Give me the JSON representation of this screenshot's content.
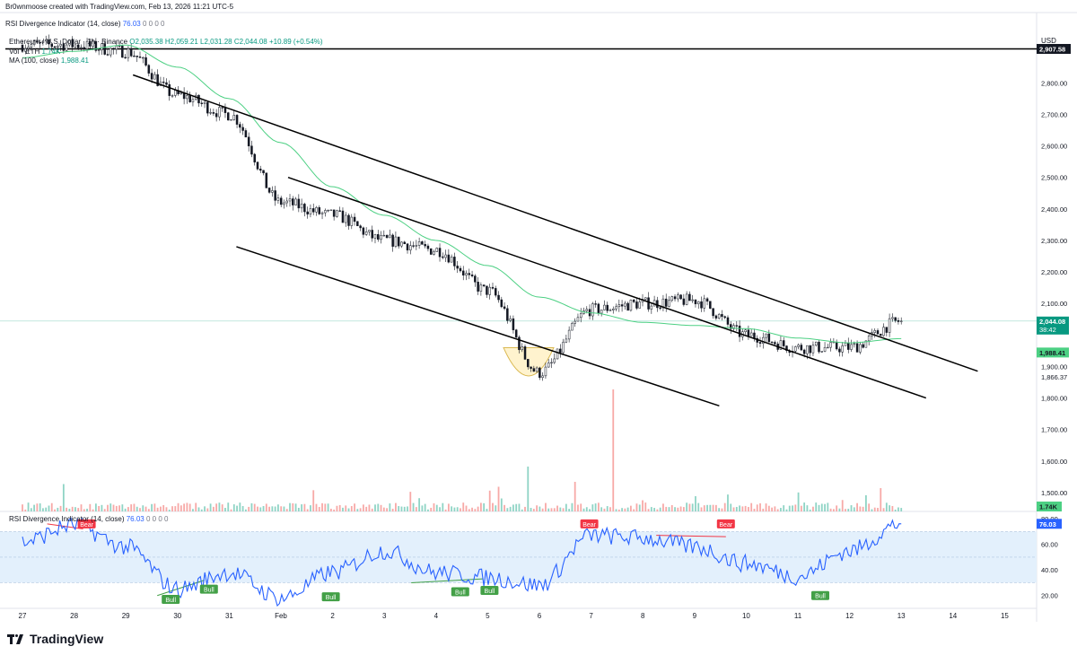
{
  "credit": "Br0wnmoose created with TradingView.com, Feb 13, 2026 11:21 UTC-5",
  "top_indicator": {
    "label": "RSI Divergence Indicator (14, close)",
    "value": "76.03",
    "zeros": "0 0 0 0"
  },
  "legend": {
    "symbol": "Ethereum / U.S. Dollar · 1h · Binance",
    "ohlc": "O2,035.38  H2,059.21  L2,031.28  C2,044.08  +10.89 (+0.54%)",
    "vol_label": "Vol · ETH",
    "vol_value": "1.74K",
    "ma_label": "MA (100, close)",
    "ma_value": "1,988.41"
  },
  "price_axis": {
    "currency": "USD",
    "ticks": [
      "2,800.00",
      "2,700.00",
      "2,600.00",
      "2,500.00",
      "2,400.00",
      "2,300.00",
      "2,200.00",
      "2,100.00",
      "1,900.00",
      "1,800.00",
      "1,700.00",
      "1,600.00",
      "1,500.00"
    ],
    "tag_level": "2,907.58",
    "tag_price": "2,044.08",
    "tag_countdown": "38:42",
    "tag_ma": "1,988.41",
    "tag_low": "1,866.37",
    "tag_vol": "1.74K"
  },
  "rsi_panel": {
    "label": "RSI Divergence Indicator (14, close)",
    "value": "76.03",
    "zeros": "0 0 0 0",
    "ticks": [
      "80.00",
      "60.00",
      "40.00",
      "20.00"
    ],
    "tag_value": "76.03",
    "bear_label": "Bear",
    "bull_label": "Bull"
  },
  "time_axis": [
    "27",
    "28",
    "29",
    "30",
    "31",
    "Feb",
    "2",
    "3",
    "4",
    "5",
    "6",
    "7",
    "8",
    "9",
    "10",
    "11",
    "12",
    "13",
    "14",
    "15"
  ],
  "brand": "TradingView",
  "colors": {
    "up": "#089981",
    "down": "#f23645",
    "ma": "#4cd083",
    "rsi": "#2962ff",
    "band": "#e3f0fc",
    "bull": "#43a047",
    "bear": "#f23645",
    "tag_blue": "#2962ff"
  },
  "chart_data": {
    "type": "line",
    "title": "Ethereum / U.S. Dollar · 1h · Binance",
    "xlabel": "",
    "ylabel": "USD",
    "ylim": [
      1440,
      3040
    ],
    "x": [
      "27",
      "28",
      "29",
      "30",
      "31",
      "Feb",
      "2",
      "3",
      "4",
      "5",
      "6",
      "7",
      "8",
      "9",
      "10",
      "11",
      "12",
      "13"
    ],
    "series": [
      {
        "name": "Ethereum / U.S. Dollar",
        "values": [
          2920,
          2920,
          2900,
          2760,
          2700,
          2420,
          2380,
          2300,
          2270,
          2140,
          1880,
          2080,
          2100,
          2110,
          2000,
          1960,
          1960,
          2044.08
        ]
      },
      {
        "name": "MA (100, close)",
        "values": [
          2880,
          2900,
          2920,
          2850,
          2750,
          2610,
          2470,
          2380,
          2300,
          2220,
          2120,
          2070,
          2040,
          2030,
          2020,
          1990,
          1975,
          1988.41
        ]
      },
      {
        "name": "RSI Divergence Indicator (14, close)",
        "values": [
          62,
          75,
          58,
          25,
          38,
          18,
          38,
          55,
          38,
          34,
          28,
          67,
          65,
          58,
          45,
          35,
          55,
          76.03
        ]
      }
    ],
    "horizontal_level": 2907.58,
    "rsi_ylim": [
      10,
      85
    ],
    "rsi_band": [
      30,
      70
    ],
    "channels": [
      {
        "from": [
          "29",
          2825
        ],
        "to": [
          "15",
          1885
        ]
      },
      {
        "from": [
          "Feb",
          2500
        ],
        "to": [
          "14",
          1800
        ]
      },
      {
        "from": [
          "31",
          2280
        ],
        "to": [
          "10",
          1775
        ]
      }
    ],
    "volume_spike_date": "7",
    "bear_signals": [
      "28",
      "7",
      "9"
    ],
    "bull_signals": [
      "29",
      "30",
      "2",
      "4",
      "5",
      "11"
    ]
  }
}
